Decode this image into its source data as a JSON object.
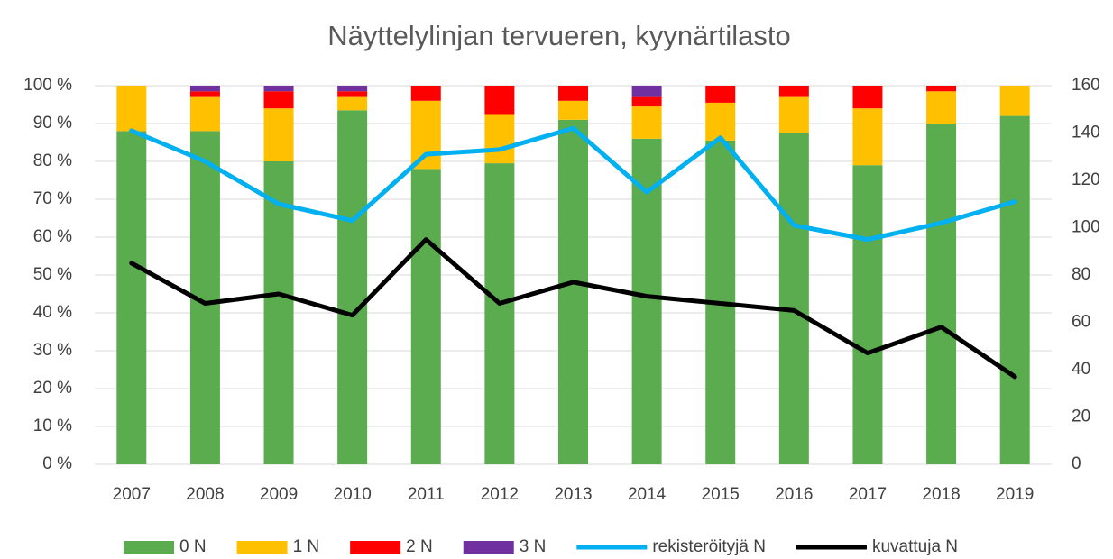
{
  "chart_data": {
    "type": "bar",
    "stacked": true,
    "title": "Näyttelylinjan tervueren, kyynärtilasto",
    "categories": [
      "2007",
      "2008",
      "2009",
      "2010",
      "2011",
      "2012",
      "2013",
      "2014",
      "2015",
      "2016",
      "2017",
      "2018",
      "2019"
    ],
    "series": [
      {
        "name": "0 N",
        "color": "#5aac4e",
        "values": [
          88,
          88,
          80,
          93.5,
          78,
          79.5,
          91,
          86,
          85.5,
          87.5,
          79,
          90,
          92
        ]
      },
      {
        "name": "1 N",
        "color": "#ffc000",
        "values": [
          12,
          9,
          14,
          3.5,
          18,
          13,
          5,
          8.5,
          10,
          9.5,
          15,
          8.5,
          8
        ]
      },
      {
        "name": "2 N",
        "color": "#ff0000",
        "values": [
          0,
          1.5,
          4.5,
          1.5,
          4,
          7.5,
          4,
          2.5,
          4.5,
          3,
          6,
          1.5,
          0
        ]
      },
      {
        "name": "3 N",
        "color": "#7030a0",
        "values": [
          0,
          1.5,
          1.5,
          1.5,
          0,
          0,
          0,
          3,
          0,
          0,
          0,
          0,
          0
        ]
      },
      {
        "name": "rekisteröityjä N",
        "type": "line",
        "axis": "y2",
        "color": "#00b0f0",
        "values": [
          141,
          128,
          110,
          103,
          131,
          133,
          142,
          115,
          138,
          101,
          95,
          102,
          111
        ]
      },
      {
        "name": "kuvattuja N",
        "type": "line",
        "axis": "y2",
        "color": "#000000",
        "values": [
          85,
          68,
          72,
          63,
          95,
          68,
          77,
          71,
          68,
          65,
          47,
          58,
          37
        ]
      }
    ],
    "ylim": [
      0,
      100
    ],
    "yticks": [
      {
        "value": 0,
        "label": "0 %"
      },
      {
        "value": 10,
        "label": "10 %"
      },
      {
        "value": 20,
        "label": "20 %"
      },
      {
        "value": 30,
        "label": "30 %"
      },
      {
        "value": 40,
        "label": "40 %"
      },
      {
        "value": 50,
        "label": "50 %"
      },
      {
        "value": 60,
        "label": "60 %"
      },
      {
        "value": 70,
        "label": "70 %"
      },
      {
        "value": 80,
        "label": "80 %"
      },
      {
        "value": 90,
        "label": "90 %"
      },
      {
        "value": 100,
        "label": "100 %"
      }
    ],
    "y2lim": [
      0,
      160
    ],
    "y2ticks": [
      0,
      20,
      40,
      60,
      80,
      100,
      120,
      140,
      160
    ],
    "grid": true,
    "legend": "bottom"
  }
}
